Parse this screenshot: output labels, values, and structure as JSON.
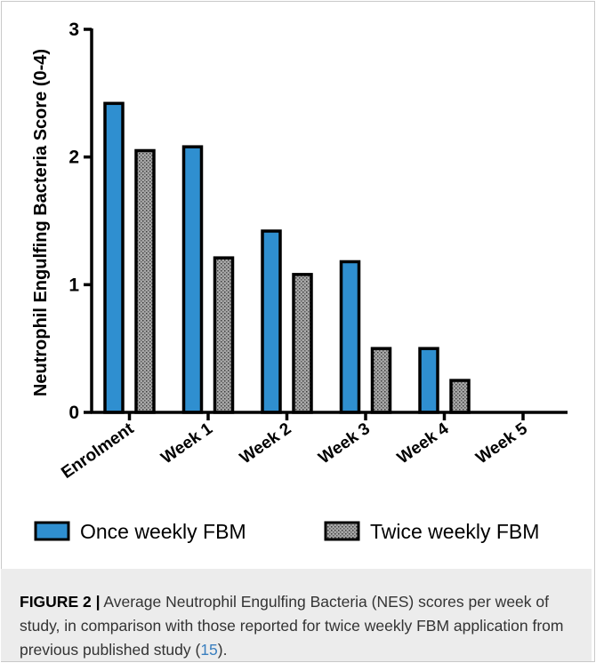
{
  "chart_data": {
    "type": "bar",
    "ylabel": "Neutrophil Engulfing Bacteria Score (0-4)",
    "ylim": [
      0,
      3
    ],
    "yticks": [
      0,
      1,
      2,
      3
    ],
    "categories": [
      "Enrolment",
      "Week 1",
      "Week 2",
      "Week 3",
      "Week 4",
      "Week 5"
    ],
    "series": [
      {
        "name": "Once weekly FBM",
        "values": [
          2.42,
          2.08,
          1.42,
          1.18,
          0.5,
          0
        ],
        "color": "#2f8fd0",
        "pattern": "solid"
      },
      {
        "name": "Twice weekly FBM",
        "values": [
          2.05,
          1.21,
          1.08,
          0.5,
          0.25,
          0
        ],
        "color": "#8c8c8c",
        "pattern": "stipple"
      }
    ],
    "legend_position": "bottom"
  },
  "caption": {
    "label": "FIGURE 2 |",
    "text": "Average Neutrophil Engulfing Bacteria (NES) scores per week of study, in comparison with those reported for twice weekly FBM application from previous published study (",
    "ref": "15",
    "tail": ")."
  }
}
